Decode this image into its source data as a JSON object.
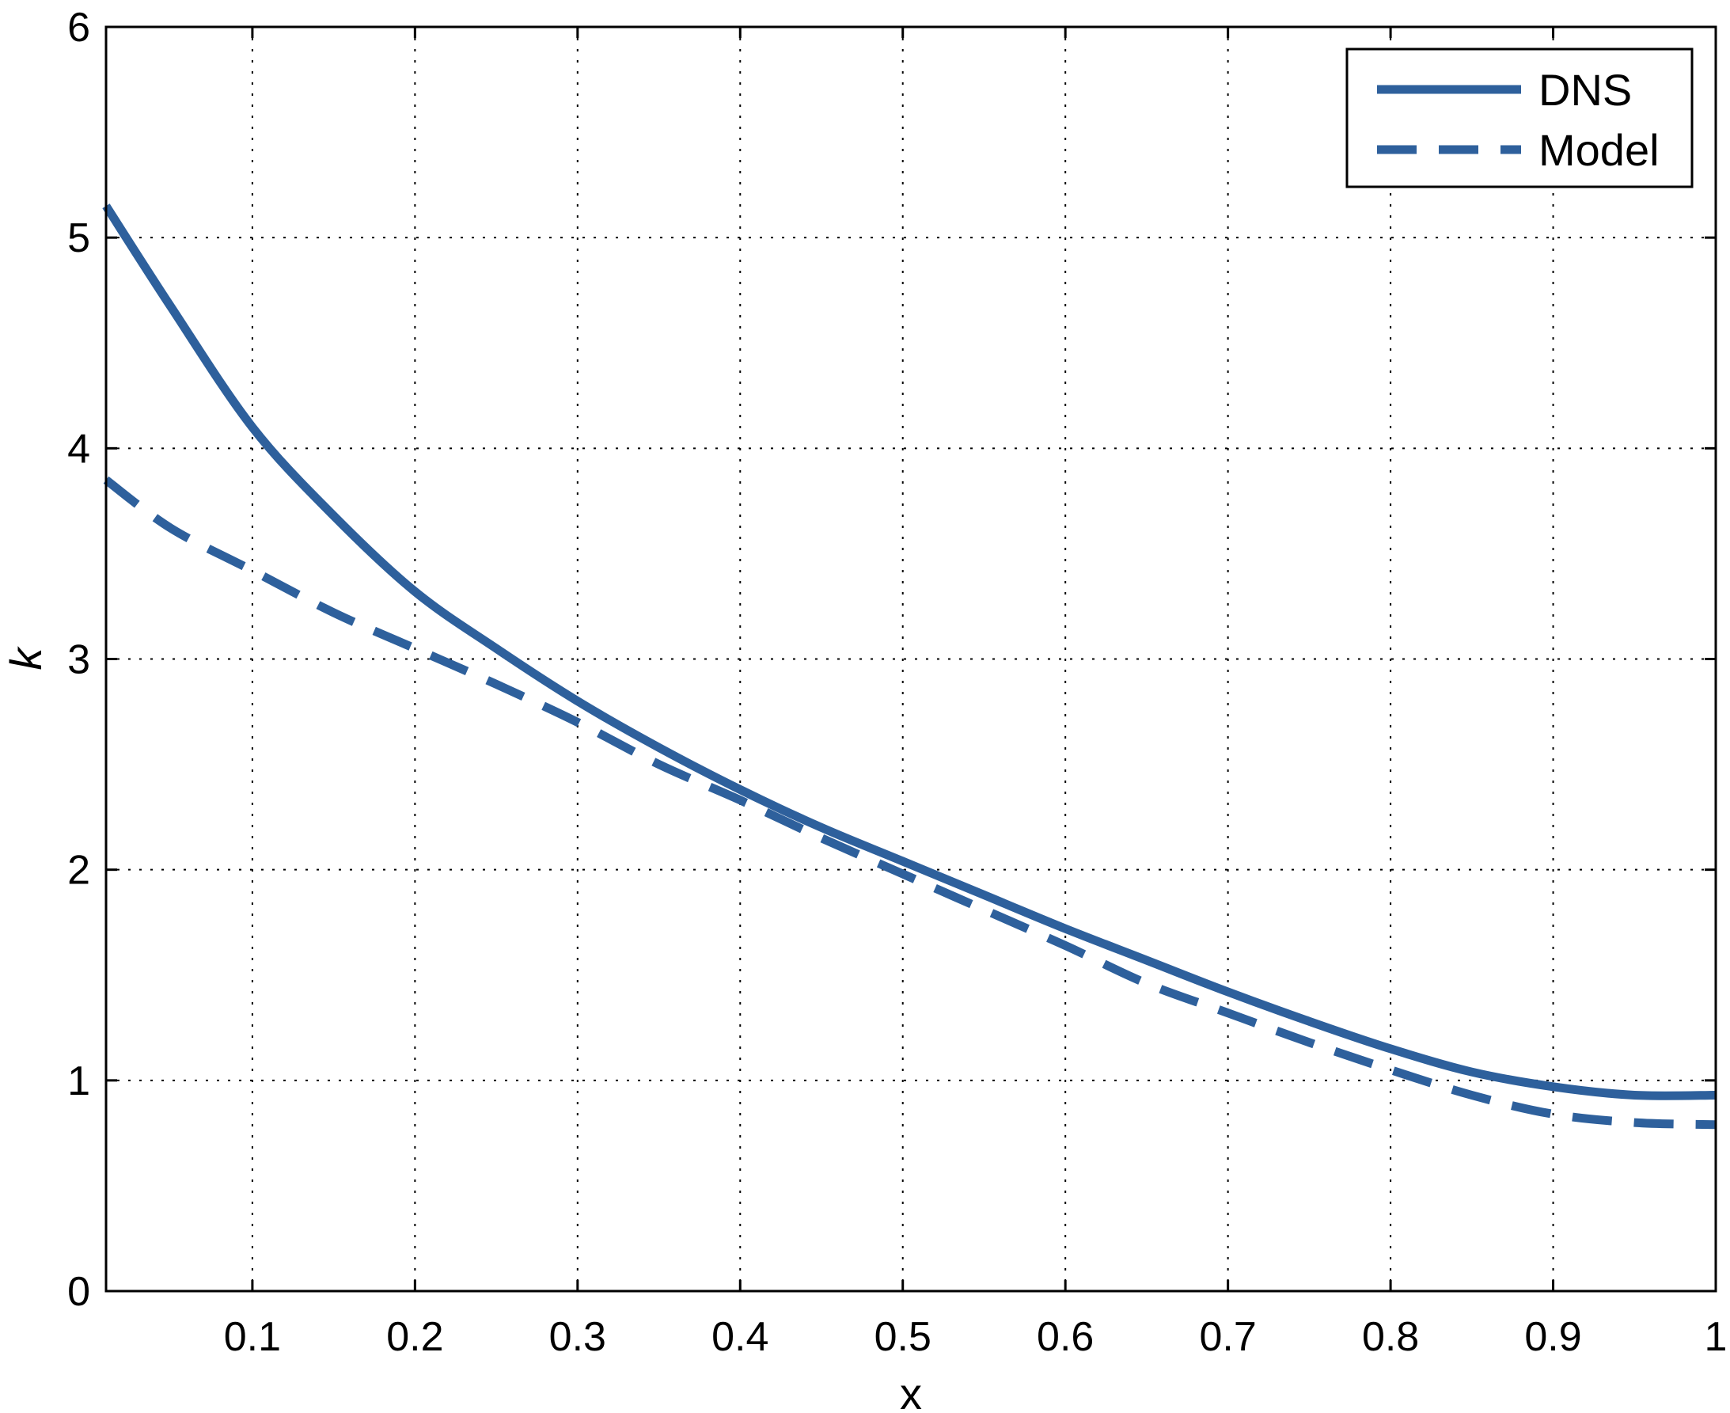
{
  "chart_data": {
    "type": "line",
    "xlabel": "x",
    "ylabel": "k",
    "xlim": [
      0.01,
      1.0
    ],
    "ylim": [
      0,
      6
    ],
    "x_ticks": [
      0.1,
      0.2,
      0.3,
      0.4,
      0.5,
      0.6,
      0.7,
      0.8,
      0.9,
      1
    ],
    "x_tick_labels": [
      "0.1",
      "0.2",
      "0.3",
      "0.4",
      "0.5",
      "0.6",
      "0.7",
      "0.8",
      "0.9",
      "1"
    ],
    "y_ticks": [
      0,
      1,
      2,
      3,
      4,
      5,
      6
    ],
    "y_tick_labels": [
      "0",
      "1",
      "2",
      "3",
      "4",
      "5",
      "6"
    ],
    "grid": true,
    "legend_position": "top-right",
    "line_color": "#2e609c",
    "series": [
      {
        "name": "DNS",
        "style": "solid",
        "x": [
          0.01,
          0.05,
          0.1,
          0.15,
          0.2,
          0.25,
          0.3,
          0.35,
          0.4,
          0.45,
          0.5,
          0.55,
          0.6,
          0.65,
          0.7,
          0.75,
          0.8,
          0.85,
          0.9,
          0.95,
          1.0
        ],
        "y": [
          5.15,
          4.67,
          4.1,
          3.68,
          3.32,
          3.05,
          2.8,
          2.58,
          2.38,
          2.2,
          2.04,
          1.88,
          1.72,
          1.57,
          1.42,
          1.28,
          1.15,
          1.04,
          0.97,
          0.93,
          0.93
        ]
      },
      {
        "name": "Model",
        "style": "dashed",
        "x": [
          0.01,
          0.05,
          0.1,
          0.15,
          0.2,
          0.25,
          0.3,
          0.35,
          0.4,
          0.45,
          0.5,
          0.55,
          0.6,
          0.65,
          0.7,
          0.75,
          0.8,
          0.85,
          0.9,
          0.95,
          1.0
        ],
        "y": [
          3.85,
          3.62,
          3.42,
          3.22,
          3.05,
          2.88,
          2.7,
          2.5,
          2.33,
          2.15,
          1.98,
          1.81,
          1.64,
          1.46,
          1.32,
          1.18,
          1.05,
          0.93,
          0.84,
          0.8,
          0.79
        ]
      }
    ]
  }
}
